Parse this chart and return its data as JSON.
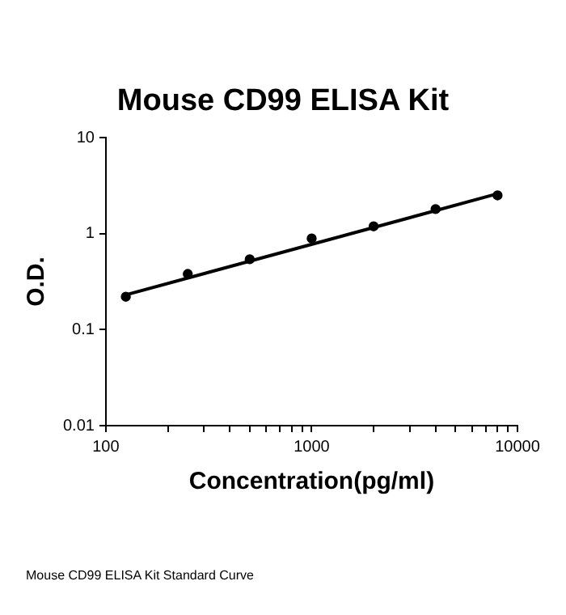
{
  "chart_data": {
    "type": "scatter",
    "title": "Mouse CD99 ELISA Kit",
    "xlabel": "Concentration(pg/ml)",
    "ylabel": "O.D.",
    "series": [
      {
        "type": "scatter",
        "marker": "circle",
        "color": "#000000",
        "x": [
          125,
          250,
          500,
          1000,
          2000,
          4000,
          8000
        ],
        "values": [
          0.22,
          0.38,
          0.54,
          0.89,
          1.19,
          1.8,
          2.5
        ]
      },
      {
        "type": "line",
        "marker": "none",
        "color": "#000000",
        "x": [
          125,
          8000
        ],
        "values": [
          0.23,
          2.6
        ]
      }
    ],
    "log": "xy",
    "xlim": [
      100,
      10000
    ],
    "ylim": [
      0.01,
      10
    ],
    "xticks": [
      100,
      {
        "value": 200,
        "label": null
      },
      {
        "value": 300,
        "label": null
      },
      {
        "value": 400,
        "label": null
      },
      {
        "value": 500,
        "label": null
      },
      {
        "value": 600,
        "label": null
      },
      {
        "value": 700,
        "label": null
      },
      {
        "value": 800,
        "label": null
      },
      {
        "value": 900,
        "label": null
      },
      1000,
      {
        "value": 2000,
        "label": null
      },
      {
        "value": 3000,
        "label": null
      },
      {
        "value": 4000,
        "label": null
      },
      {
        "value": 5000,
        "label": null
      },
      {
        "value": 6000,
        "label": null
      },
      {
        "value": 7000,
        "label": null
      },
      {
        "value": 8000,
        "label": null
      },
      {
        "value": 9000,
        "label": null
      },
      10000
    ],
    "yticks": [
      0.01,
      0.1,
      1,
      10
    ],
    "grid": false,
    "legend": false,
    "line_style": "solid",
    "annotations": [
      "Mouse CD99 ELISA Kit Standard Curve"
    ]
  }
}
